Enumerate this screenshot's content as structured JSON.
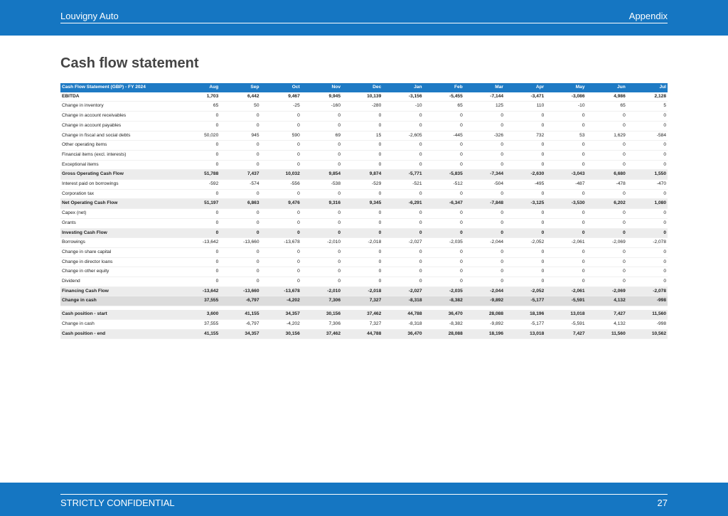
{
  "header": {
    "company": "Louvigny Auto",
    "section": "Appendix"
  },
  "title": "Cash flow statement",
  "table": {
    "caption": "Cash Flow Statement (GBP) - FY 2024",
    "columns": [
      "Aug",
      "Sep",
      "Oct",
      "Nov",
      "Dec",
      "Jan",
      "Feb",
      "Mar",
      "Apr",
      "May",
      "Jun",
      "Jul"
    ],
    "header_color": "#1e7ac4",
    "sections": [
      {
        "rows": [
          {
            "label": "EBITDA",
            "bold": true,
            "values": [
              "1,703",
              "6,442",
              "9,467",
              "9,945",
              "10,139",
              "-3,156",
              "-5,455",
              "-7,144",
              "-3,471",
              "-3,086",
              "4,986",
              "2,128"
            ]
          },
          {
            "label": "Change in inventory",
            "values": [
              "65",
              "50",
              "-25",
              "-160",
              "-280",
              "-10",
              "65",
              "125",
              "110",
              "-10",
              "65",
              "5"
            ]
          },
          {
            "label": "Change in account receivables",
            "values": [
              "0",
              "0",
              "0",
              "0",
              "0",
              "0",
              "0",
              "0",
              "0",
              "0",
              "0",
              "0"
            ]
          },
          {
            "label": "Change in account payables",
            "values": [
              "0",
              "0",
              "0",
              "0",
              "0",
              "0",
              "0",
              "0",
              "0",
              "0",
              "0",
              "0"
            ]
          },
          {
            "label": "Change in fiscal and social debts",
            "values": [
              "50,020",
              "945",
              "590",
              "69",
              "15",
              "-2,605",
              "-445",
              "-326",
              "732",
              "53",
              "1,629",
              "-584"
            ]
          },
          {
            "label": "Other operating items",
            "values": [
              "0",
              "0",
              "0",
              "0",
              "0",
              "0",
              "0",
              "0",
              "0",
              "0",
              "0",
              "0"
            ]
          },
          {
            "label": "Financial items (excl. interests)",
            "values": [
              "0",
              "0",
              "0",
              "0",
              "0",
              "0",
              "0",
              "0",
              "0",
              "0",
              "0",
              "0"
            ]
          },
          {
            "label": "Exceptional items",
            "values": [
              "0",
              "0",
              "0",
              "0",
              "0",
              "0",
              "0",
              "0",
              "0",
              "0",
              "0",
              "0"
            ]
          },
          {
            "label": "Gross Operating Cash Flow",
            "bold": true,
            "shade": "#ececec",
            "values": [
              "51,788",
              "7,437",
              "10,032",
              "9,854",
              "9,874",
              "-5,771",
              "-5,835",
              "-7,344",
              "-2,630",
              "-3,043",
              "6,680",
              "1,550"
            ]
          },
          {
            "label": "Interest paid on borrowings",
            "values": [
              "-592",
              "-574",
              "-556",
              "-538",
              "-529",
              "-521",
              "-512",
              "-504",
              "-495",
              "-487",
              "-478",
              "-470"
            ]
          },
          {
            "label": "Corporation tax",
            "values": [
              "0",
              "0",
              "0",
              "0",
              "0",
              "0",
              "0",
              "0",
              "0",
              "0",
              "0",
              "0"
            ]
          },
          {
            "label": "Net Operating Cash Flow",
            "bold": true,
            "shade": "#ececec",
            "values": [
              "51,197",
              "6,863",
              "9,476",
              "9,316",
              "9,345",
              "-6,291",
              "-6,347",
              "-7,848",
              "-3,125",
              "-3,530",
              "6,202",
              "1,080"
            ]
          },
          {
            "label": "Capex (net)",
            "values": [
              "0",
              "0",
              "0",
              "0",
              "0",
              "0",
              "0",
              "0",
              "0",
              "0",
              "0",
              "0"
            ]
          },
          {
            "label": "Grants",
            "values": [
              "0",
              "0",
              "0",
              "0",
              "0",
              "0",
              "0",
              "0",
              "0",
              "0",
              "0",
              "0"
            ]
          },
          {
            "label": "Investing Cash Flow",
            "bold": true,
            "shade": "#ececec",
            "values": [
              "0",
              "0",
              "0",
              "0",
              "0",
              "0",
              "0",
              "0",
              "0",
              "0",
              "0",
              "0"
            ]
          },
          {
            "label": "Borrowings",
            "values": [
              "-13,642",
              "-13,660",
              "-13,678",
              "-2,010",
              "-2,018",
              "-2,027",
              "-2,035",
              "-2,044",
              "-2,052",
              "-2,061",
              "-2,069",
              "-2,078"
            ]
          },
          {
            "label": "Change in share capital",
            "values": [
              "0",
              "0",
              "0",
              "0",
              "0",
              "0",
              "0",
              "0",
              "0",
              "0",
              "0",
              "0"
            ]
          },
          {
            "label": "Change in director loans",
            "values": [
              "0",
              "0",
              "0",
              "0",
              "0",
              "0",
              "0",
              "0",
              "0",
              "0",
              "0",
              "0"
            ]
          },
          {
            "label": "Change in other equity",
            "values": [
              "0",
              "0",
              "0",
              "0",
              "0",
              "0",
              "0",
              "0",
              "0",
              "0",
              "0",
              "0"
            ]
          },
          {
            "label": "Dividend",
            "values": [
              "0",
              "0",
              "0",
              "0",
              "0",
              "0",
              "0",
              "0",
              "0",
              "0",
              "0",
              "0"
            ]
          },
          {
            "label": "Financing Cash Flow",
            "bold": true,
            "shade": "#ececec",
            "values": [
              "-13,642",
              "-13,660",
              "-13,678",
              "-2,010",
              "-2,018",
              "-2,027",
              "-2,035",
              "-2,044",
              "-2,052",
              "-2,061",
              "-2,069",
              "-2,078"
            ]
          },
          {
            "label": "Change in cash",
            "bold": true,
            "shade": "#dcdcdc",
            "values": [
              "37,555",
              "-6,797",
              "-4,202",
              "7,306",
              "7,327",
              "-8,318",
              "-8,382",
              "-9,892",
              "-5,177",
              "-5,591",
              "4,132",
              "-998"
            ]
          }
        ]
      },
      {
        "rows": [
          {
            "label": "Cash position - start",
            "bold": true,
            "shade": "#ececec",
            "values": [
              "3,600",
              "41,155",
              "34,357",
              "30,156",
              "37,462",
              "44,788",
              "36,470",
              "28,088",
              "18,196",
              "13,018",
              "7,427",
              "11,560"
            ]
          },
          {
            "label": "Change in cash",
            "values": [
              "37,555",
              "-6,797",
              "-4,202",
              "7,306",
              "7,327",
              "-8,318",
              "-8,382",
              "-9,892",
              "-5,177",
              "-5,591",
              "4,132",
              "-998"
            ]
          },
          {
            "label": "Cash position - end",
            "bold": true,
            "shade": "#ececec",
            "values": [
              "41,155",
              "34,357",
              "30,156",
              "37,462",
              "44,788",
              "36,470",
              "28,088",
              "18,196",
              "13,018",
              "7,427",
              "11,560",
              "10,562"
            ]
          }
        ]
      }
    ]
  },
  "footer": {
    "confidentiality": "STRICTLY CONFIDENTIAL",
    "page": "27"
  }
}
